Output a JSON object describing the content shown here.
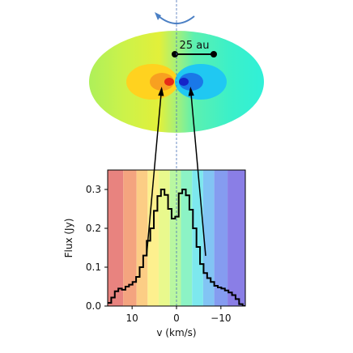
{
  "chart_data": {
    "type": "line",
    "subtype": "step",
    "xlabel": "v (km/s)",
    "ylabel": "Flux (Jy)",
    "xlim": [
      15.5,
      -15.5
    ],
    "ylim": [
      0.0,
      0.35
    ],
    "x_ticks": [
      10,
      0,
      -10
    ],
    "x_tick_labels": [
      "10",
      "0",
      "−10"
    ],
    "y_ticks": [
      0.0,
      0.1,
      0.2,
      0.3
    ],
    "y_tick_labels": [
      "0.0",
      "0.1",
      "0.2",
      "0.3"
    ],
    "grid": false,
    "background_velocity_bands": [
      {
        "from": 15.5,
        "to": 12,
        "color": "#e8837f"
      },
      {
        "from": 12,
        "to": 9,
        "color": "#f4a47f"
      },
      {
        "from": 9,
        "to": 6.5,
        "color": "#fccd85"
      },
      {
        "from": 6.5,
        "to": 4,
        "color": "#fdf08e"
      },
      {
        "from": 4,
        "to": 1.5,
        "color": "#e9f98d"
      },
      {
        "from": 1.5,
        "to": -1,
        "color": "#b9f7a1"
      },
      {
        "from": -1,
        "to": -3.5,
        "color": "#8cf3c5"
      },
      {
        "from": -3.5,
        "to": -6,
        "color": "#7de8ee"
      },
      {
        "from": -6,
        "to": -8.5,
        "color": "#82c4f4"
      },
      {
        "from": -8.5,
        "to": -11.5,
        "color": "#859cf0"
      },
      {
        "from": -11.5,
        "to": -15.5,
        "color": "#8a7ee6"
      }
    ],
    "series": [
      {
        "x": [
          15.5,
          14.7,
          13.9,
          13.1,
          12.3,
          11.5,
          10.7,
          9.9,
          9.1,
          8.3,
          7.5,
          6.7,
          5.9,
          5.1,
          4.3,
          3.5,
          2.7,
          1.9,
          1.1,
          0.3,
          -0.5,
          -1.3,
          -2.1,
          -2.9,
          -3.7,
          -4.5,
          -5.3,
          -6.1,
          -6.9,
          -7.7,
          -8.5,
          -9.3,
          -10.1,
          -10.9,
          -11.7,
          -12.5,
          -13.3,
          -14.1,
          -14.9
        ],
        "y": [
          0.008,
          0.022,
          0.038,
          0.045,
          0.042,
          0.05,
          0.055,
          0.062,
          0.075,
          0.1,
          0.13,
          0.168,
          0.2,
          0.245,
          0.283,
          0.3,
          0.286,
          0.25,
          0.225,
          0.23,
          0.29,
          0.3,
          0.285,
          0.248,
          0.2,
          0.152,
          0.108,
          0.085,
          0.072,
          0.062,
          0.052,
          0.048,
          0.045,
          0.04,
          0.035,
          0.028,
          0.018,
          0.005,
          0.0
        ]
      }
    ],
    "annotations": [
      {
        "text": "25 au"
      }
    ]
  }
}
